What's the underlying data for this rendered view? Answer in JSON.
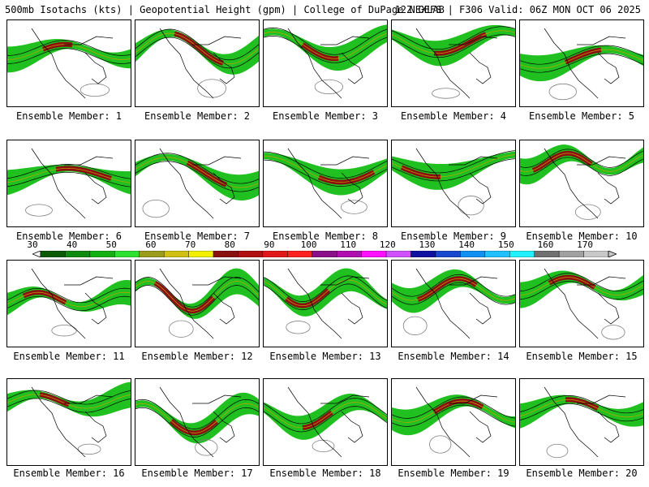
{
  "header": {
    "left": "500mb Isotachs (kts) | Geopotential Height (gpm) | College of DuPage NEXLAB",
    "right": "12Z GEFS | F306 Valid: 06Z MON OCT 06 2025"
  },
  "colorbar": {
    "labels": [
      "30",
      "40",
      "50",
      "60",
      "70",
      "80",
      "90",
      "100",
      "110",
      "120",
      "130",
      "140",
      "150",
      "160",
      "170"
    ],
    "colors": [
      "#0a5a0a",
      "#0e8a0e",
      "#12b012",
      "#30e030",
      "#9c9c1c",
      "#d0c014",
      "#f0f000",
      "#881010",
      "#b01010",
      "#e01818",
      "#ff2020",
      "#8a108a",
      "#b010b0",
      "#ff10ff",
      "#d050ff",
      "#1010a0",
      "#1848d0",
      "#1090f0",
      "#20c0ff",
      "#20f0ff",
      "#707070",
      "#a0a0a0",
      "#c8c8c8"
    ]
  },
  "panels": [
    {
      "caption": "Ensemble Member: 1"
    },
    {
      "caption": "Ensemble Member: 2"
    },
    {
      "caption": "Ensemble Member: 3"
    },
    {
      "caption": "Ensemble Member: 4"
    },
    {
      "caption": "Ensemble Member: 5"
    },
    {
      "caption": "Ensemble Member: 6"
    },
    {
      "caption": "Ensemble Member: 7"
    },
    {
      "caption": "Ensemble Member: 8"
    },
    {
      "caption": "Ensemble Member: 9"
    },
    {
      "caption": "Ensemble Member: 10"
    },
    {
      "caption": "Ensemble Member: 11"
    },
    {
      "caption": "Ensemble Member: 12"
    },
    {
      "caption": "Ensemble Member: 13"
    },
    {
      "caption": "Ensemble Member: 14"
    },
    {
      "caption": "Ensemble Member: 15"
    },
    {
      "caption": "Ensemble Member: 16"
    },
    {
      "caption": "Ensemble Member: 17"
    },
    {
      "caption": "Ensemble Member: 18"
    },
    {
      "caption": "Ensemble Member: 19"
    },
    {
      "caption": "Ensemble Member: 20"
    }
  ]
}
